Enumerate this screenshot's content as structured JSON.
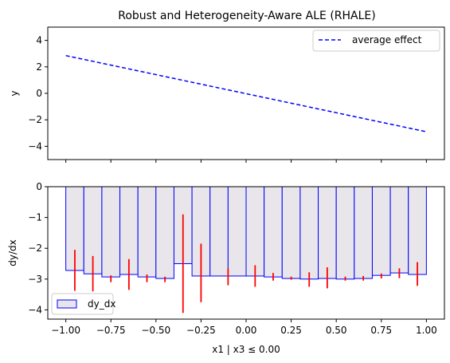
{
  "title": "Robust and Heterogeneity-Aware ALE (RHALE)",
  "xlabel": "x1 | x3 ≤ 0.00",
  "chart_data": [
    {
      "type": "line",
      "panel": "top",
      "ylabel": "y",
      "xlim": [
        -1.1,
        1.1
      ],
      "ylim": [
        -5,
        5
      ],
      "y_ticks": [
        -4,
        -2,
        0,
        2,
        4
      ],
      "y_tick_labels": [
        "−4",
        "−2",
        "0",
        "2",
        "4"
      ],
      "x_ticks": [
        -1.0,
        -0.75,
        -0.5,
        -0.25,
        0.0,
        0.25,
        0.5,
        0.75,
        1.0
      ],
      "x_tick_labels": [],
      "legend_position": "upper right",
      "series": [
        {
          "name": "average effect",
          "color": "#0000ff",
          "style": "dashed",
          "x": [
            -1.0,
            1.0
          ],
          "y": [
            2.85,
            -2.9
          ]
        }
      ]
    },
    {
      "type": "bar",
      "panel": "bottom",
      "ylabel": "dy/dx",
      "xlim": [
        -1.1,
        1.1
      ],
      "ylim": [
        -4.3,
        0
      ],
      "y_ticks": [
        -4,
        -3,
        -2,
        -1,
        0
      ],
      "y_tick_labels": [
        "−4",
        "−3",
        "−2",
        "−1",
        "0"
      ],
      "x_ticks": [
        -1.0,
        -0.75,
        -0.5,
        -0.25,
        0.0,
        0.25,
        0.5,
        0.75,
        1.0
      ],
      "x_tick_labels": [
        "−1.00",
        "−0.75",
        "−0.50",
        "−0.25",
        "0.00",
        "0.25",
        "0.50",
        "0.75",
        "1.00"
      ],
      "legend_position": "lower left",
      "bar_fill": "#e8e6ea",
      "bar_edge": "#0000ff",
      "errorbar_color": "#ff0000",
      "series": [
        {
          "name": "dy_dx",
          "bin_edges": [
            -1.0,
            -0.9,
            -0.8,
            -0.7,
            -0.6,
            -0.5,
            -0.4,
            -0.3,
            -0.2,
            -0.1,
            0.0,
            0.1,
            0.2,
            0.3,
            0.4,
            0.5,
            0.6,
            0.7,
            0.8,
            0.9,
            1.0
          ],
          "values": [
            -2.72,
            -2.83,
            -2.93,
            -2.85,
            -2.93,
            -2.98,
            -2.5,
            -2.9,
            -2.9,
            -2.9,
            -2.9,
            -2.93,
            -2.98,
            -3.0,
            -2.98,
            -3.0,
            -2.98,
            -2.88,
            -2.8,
            -2.85
          ],
          "error_centers": [
            -0.95,
            -0.85,
            -0.75,
            -0.65,
            -0.55,
            -0.45,
            -0.35,
            -0.25,
            -0.1,
            0.05,
            0.15,
            0.25,
            0.35,
            0.45,
            0.55,
            0.65,
            0.75,
            0.85,
            0.95
          ],
          "error_low": [
            -3.38,
            -3.4,
            -3.1,
            -3.35,
            -3.1,
            -3.1,
            -4.1,
            -3.75,
            -3.2,
            -3.25,
            -3.05,
            -3.02,
            -3.25,
            -3.3,
            -3.05,
            -3.05,
            -2.98,
            -2.97,
            -3.22
          ],
          "error_high": [
            -2.05,
            -2.25,
            -2.88,
            -2.35,
            -2.85,
            -2.92,
            -0.9,
            -1.85,
            -2.65,
            -2.55,
            -2.8,
            -2.92,
            -2.78,
            -2.62,
            -2.92,
            -2.9,
            -2.82,
            -2.65,
            -2.45
          ]
        }
      ]
    }
  ]
}
